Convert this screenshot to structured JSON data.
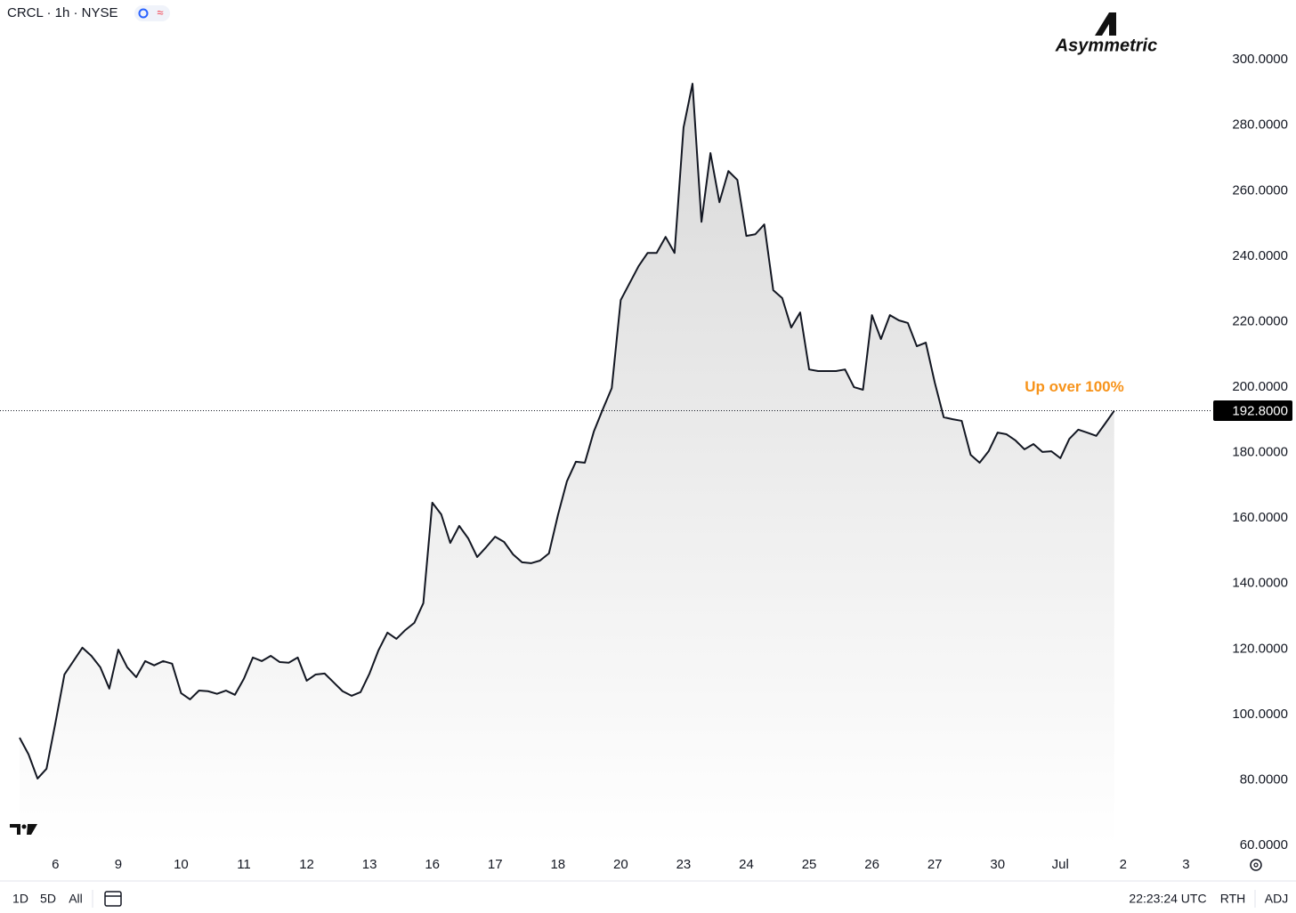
{
  "ui": {
    "symbol": "CRCL · 1h · NYSE",
    "logo": "Asymmetric",
    "ranges": [
      "1D",
      "5D",
      "All"
    ],
    "clock": "22:23:24 UTC",
    "session": "RTH",
    "adjust": "ADJ"
  },
  "chart_data": {
    "type": "area",
    "color": "#131722",
    "categories": [
      null,
      null,
      null,
      null,
      "6",
      null,
      null,
      null,
      null,
      null,
      null,
      "9",
      null,
      null,
      null,
      null,
      null,
      null,
      "10",
      null,
      null,
      null,
      null,
      null,
      null,
      "11",
      null,
      null,
      null,
      null,
      null,
      null,
      "12",
      null,
      null,
      null,
      null,
      null,
      null,
      "13",
      null,
      null,
      null,
      null,
      null,
      null,
      "16",
      null,
      null,
      null,
      null,
      null,
      null,
      "17",
      null,
      null,
      null,
      null,
      null,
      null,
      "18",
      null,
      null,
      null,
      null,
      null,
      null,
      "20",
      null,
      null,
      null,
      null,
      null,
      null,
      "23",
      null,
      null,
      null,
      null,
      null,
      null,
      "24",
      null,
      null,
      null,
      null,
      null,
      null,
      "25",
      null,
      null,
      null,
      null,
      null,
      null,
      "26",
      null,
      null,
      null,
      null,
      null,
      null,
      "27",
      null,
      null,
      null,
      null,
      null,
      null,
      "30",
      null,
      null,
      null,
      null,
      null,
      null,
      "Jul",
      null,
      null,
      null,
      null,
      null,
      null,
      "2",
      null,
      null,
      null,
      null,
      null,
      null,
      "3",
      null,
      null
    ],
    "values": [
      92.9,
      87.8,
      80.4,
      83.4,
      97.5,
      112.2,
      116.3,
      120.4,
      117.9,
      114.4,
      107.9,
      119.8,
      114.4,
      111.4,
      116.3,
      115.0,
      116.3,
      115.5,
      106.5,
      104.6,
      107.3,
      107.1,
      106.3,
      107.3,
      106.0,
      110.9,
      117.4,
      116.3,
      117.9,
      116.0,
      115.8,
      117.4,
      110.3,
      112.2,
      112.5,
      109.8,
      107.1,
      105.7,
      106.8,
      112.5,
      119.6,
      125.0,
      123.1,
      125.8,
      128.0,
      134.0,
      164.7,
      161.1,
      152.4,
      157.6,
      153.8,
      148.1,
      151.1,
      154.3,
      152.7,
      148.9,
      146.5,
      146.2,
      147.0,
      149.2,
      160.9,
      171.2,
      177.2,
      176.9,
      186.4,
      193.2,
      199.7,
      226.6,
      231.8,
      237.0,
      241.0,
      241.0,
      245.9,
      241.0,
      279.3,
      292.7,
      250.5,
      271.5,
      256.5,
      266.0,
      263.3,
      246.2,
      246.7,
      249.7,
      229.6,
      227.2,
      218.2,
      222.8,
      205.4,
      204.9,
      204.9,
      204.9,
      205.4,
      200.0,
      199.2,
      222.0,
      214.7,
      222.0,
      220.4,
      219.6,
      212.5,
      213.6,
      201.4,
      190.8,
      190.2,
      189.7,
      179.3,
      176.9,
      180.4,
      186.1,
      185.6,
      183.7,
      181.0,
      182.6,
      180.2,
      180.4,
      178.3,
      184.2,
      187.0,
      186.1,
      185.1,
      188.9,
      192.8,
      null,
      null,
      null,
      null,
      null,
      null,
      null,
      null,
      null,
      null
    ],
    "ylim": [
      60,
      318
    ],
    "yticks": [
      {
        "value": 60,
        "label": "60.0000"
      },
      {
        "value": 80,
        "label": "80.0000"
      },
      {
        "value": 100,
        "label": "100.0000"
      },
      {
        "value": 120,
        "label": "120.0000"
      },
      {
        "value": 140,
        "label": "140.0000"
      },
      {
        "value": 160,
        "label": "160.0000"
      },
      {
        "value": 180,
        "label": "180.0000"
      },
      {
        "value": 200,
        "label": "200.0000"
      },
      {
        "value": 220,
        "label": "220.0000"
      },
      {
        "value": 240,
        "label": "240.0000"
      },
      {
        "value": 260,
        "label": "260.0000"
      },
      {
        "value": 280,
        "label": "280.0000"
      },
      {
        "value": 300,
        "label": "300.0000"
      }
    ],
    "last_price": {
      "value": 192.8,
      "label": "192.8000"
    },
    "annotation": {
      "text": "Up over 100%",
      "color": "#f7931a"
    },
    "grid": false
  }
}
